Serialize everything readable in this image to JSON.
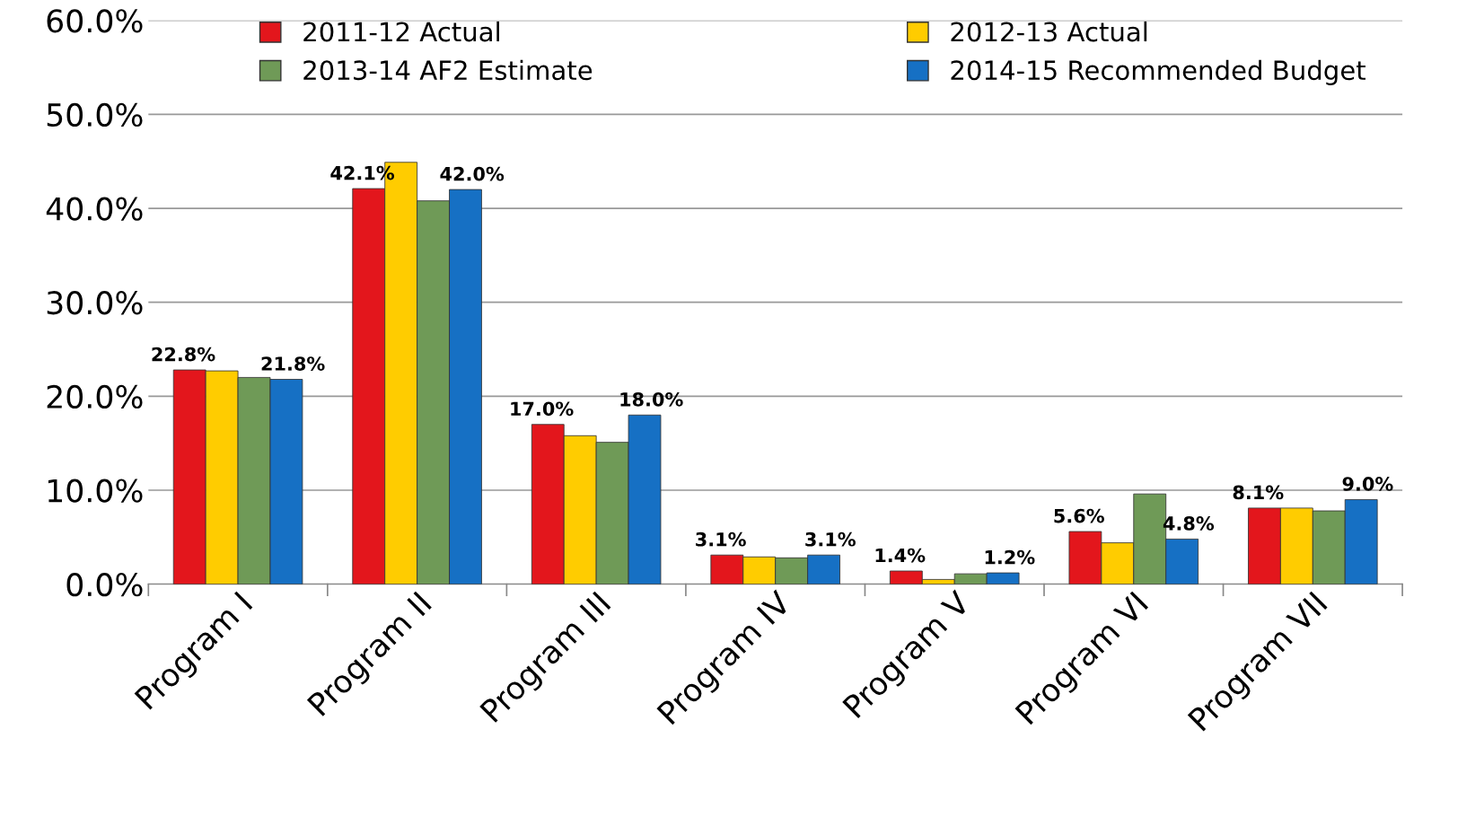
{
  "chart_data": {
    "type": "bar",
    "categories": [
      "Program I",
      "Program II",
      "Program III",
      "Program IV",
      "Program V",
      "Program VI",
      "Program VII"
    ],
    "series": [
      {
        "name": "2011-12 Actual",
        "color": "#e3161c",
        "values": [
          22.8,
          42.1,
          17.0,
          3.1,
          1.4,
          5.6,
          8.1
        ],
        "value_labels": [
          "22.8%",
          "42.1%",
          "17.0%",
          "3.1%",
          "1.4%",
          "5.6%",
          "8.1%"
        ]
      },
      {
        "name": "2012-13 Actual",
        "color": "#ffcc00",
        "values": [
          22.7,
          44.9,
          15.8,
          2.9,
          0.5,
          4.4,
          8.1
        ]
      },
      {
        "name": "2013-14 AF2 Estimate",
        "color": "#6f9a57",
        "values": [
          22.0,
          40.8,
          15.1,
          2.8,
          1.1,
          9.6,
          7.8
        ]
      },
      {
        "name": "2014-15 Recommended Budget",
        "color": "#1670c4",
        "values": [
          21.8,
          42.0,
          18.0,
          3.1,
          1.2,
          4.8,
          9.0
        ],
        "value_labels": [
          "21.8%",
          "42.0%",
          "18.0%",
          "3.1%",
          "1.2%",
          "4.8%",
          "9.0%"
        ]
      }
    ],
    "ylim": [
      0,
      60
    ],
    "yticks": [
      {
        "value": 0,
        "label": "0.0%"
      },
      {
        "value": 10,
        "label": "10.0%"
      },
      {
        "value": 20,
        "label": "20.0%"
      },
      {
        "value": 30,
        "label": "30.0%"
      },
      {
        "value": 40,
        "label": "40.0%"
      },
      {
        "value": 50,
        "label": "50.0%"
      },
      {
        "value": 60,
        "label": "60.0%"
      }
    ],
    "grid": "y",
    "legend": "top"
  }
}
